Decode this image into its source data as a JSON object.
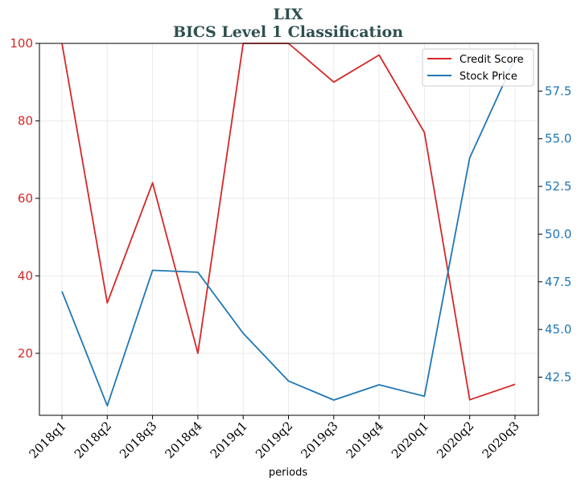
{
  "chart_data": {
    "type": "line",
    "title": "LIX",
    "subtitle": "BICS Level 1 Classification",
    "xlabel": "periods",
    "categories": [
      "2018q1",
      "2018q2",
      "2018q3",
      "2018q4",
      "2019q1",
      "2019q2",
      "2019q3",
      "2019q4",
      "2020q1",
      "2020q2",
      "2020q3"
    ],
    "y_left": {
      "lim": [
        4,
        100
      ],
      "ticks": [
        20,
        40,
        60,
        80,
        100
      ],
      "tick_labels": [
        "20",
        "40",
        "60",
        "80",
        "100"
      ],
      "color": "#d62728"
    },
    "y_right": {
      "lim": [
        40.5,
        60.0
      ],
      "ticks": [
        42.5,
        45.0,
        47.5,
        50.0,
        52.5,
        55.0,
        57.5
      ],
      "tick_labels": [
        "42.5",
        "45.0",
        "47.5",
        "50.0",
        "52.5",
        "55.0",
        "57.5"
      ],
      "color": "#1f77b4"
    },
    "series": [
      {
        "name": "Credit Score",
        "axis": "left",
        "color": "#d62728",
        "values": [
          100,
          33,
          64,
          20,
          100,
          100,
          90,
          97,
          77,
          8,
          12
        ]
      },
      {
        "name": "Stock Price",
        "axis": "right",
        "color": "#1f77b4",
        "values": [
          47.0,
          41.0,
          48.1,
          48.0,
          44.8,
          42.3,
          41.3,
          42.1,
          41.5,
          54.0,
          59.2
        ]
      }
    ],
    "grid": true,
    "legend_position": "top-right"
  }
}
